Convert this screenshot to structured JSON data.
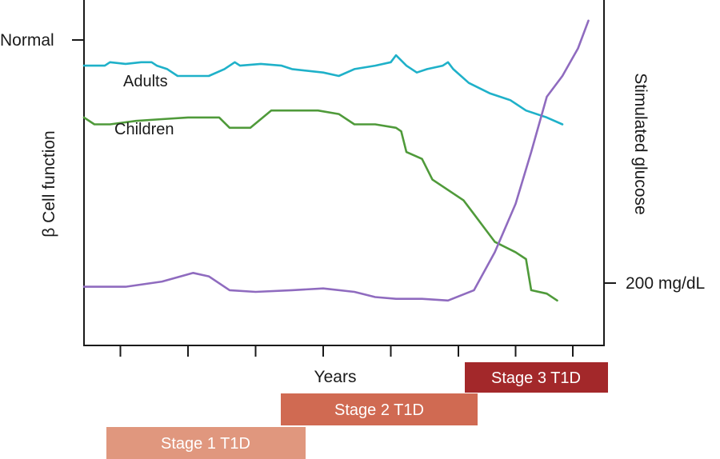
{
  "chart_data": {
    "type": "line",
    "title": "",
    "xlabel": "Years",
    "ylabel": "β Cell function",
    "y2label": "Stimulated glucose",
    "y_tick_label": "Normal",
    "y2_tick_label": "200 mg/dL",
    "xlim": [
      0,
      100
    ],
    "ylim": [
      0,
      100
    ],
    "x_ticks": [
      7,
      20,
      33,
      46,
      59,
      72,
      83,
      94
    ],
    "grid": false,
    "legend": "none",
    "series": [
      {
        "name": "Adults",
        "axis": "left",
        "color": "#1fb1c9",
        "points": [
          [
            0,
            81
          ],
          [
            4,
            81
          ],
          [
            5,
            82
          ],
          [
            8,
            81.5
          ],
          [
            11,
            82
          ],
          [
            13,
            82
          ],
          [
            14,
            81
          ],
          [
            16,
            80
          ],
          [
            18,
            78
          ],
          [
            21,
            78
          ],
          [
            24,
            78
          ],
          [
            27,
            80
          ],
          [
            29,
            82
          ],
          [
            30,
            81
          ],
          [
            34,
            81.5
          ],
          [
            38,
            81
          ],
          [
            40,
            80
          ],
          [
            46,
            79
          ],
          [
            49,
            78
          ],
          [
            52,
            80
          ],
          [
            56,
            81
          ],
          [
            59,
            82
          ],
          [
            60,
            84
          ],
          [
            62,
            81
          ],
          [
            64,
            79
          ],
          [
            66,
            80
          ],
          [
            69,
            81
          ],
          [
            70,
            82
          ],
          [
            71,
            80
          ],
          [
            74,
            76
          ],
          [
            78,
            73
          ],
          [
            82,
            71
          ],
          [
            85,
            68
          ],
          [
            89,
            66
          ],
          [
            92,
            64
          ]
        ]
      },
      {
        "name": "Children",
        "axis": "left",
        "color": "#4f9a3a",
        "points": [
          [
            0,
            66
          ],
          [
            2,
            64
          ],
          [
            5,
            64
          ],
          [
            10,
            65
          ],
          [
            15,
            65.5
          ],
          [
            20,
            66
          ],
          [
            24,
            66
          ],
          [
            26,
            66
          ],
          [
            28,
            63
          ],
          [
            32,
            63
          ],
          [
            36,
            68
          ],
          [
            40,
            68
          ],
          [
            45,
            68
          ],
          [
            49,
            67
          ],
          [
            52,
            64
          ],
          [
            56,
            64
          ],
          [
            60,
            63
          ],
          [
            61,
            62
          ],
          [
            62,
            56
          ],
          [
            65,
            54
          ],
          [
            67,
            48
          ],
          [
            70,
            45
          ],
          [
            73,
            42
          ],
          [
            75,
            38
          ],
          [
            77,
            34
          ],
          [
            79,
            30
          ],
          [
            83,
            27
          ],
          [
            85,
            25
          ],
          [
            86,
            16
          ],
          [
            89,
            15
          ],
          [
            91,
            13
          ]
        ]
      },
      {
        "name": "",
        "axis": "right",
        "color": "#8f6bbf",
        "points": [
          [
            0,
            17
          ],
          [
            8,
            17
          ],
          [
            15,
            18.5
          ],
          [
            21,
            21
          ],
          [
            24,
            20
          ],
          [
            28,
            16
          ],
          [
            33,
            15.5
          ],
          [
            40,
            16
          ],
          [
            46,
            16.5
          ],
          [
            52,
            15.5
          ],
          [
            56,
            14
          ],
          [
            60,
            13.5
          ],
          [
            65,
            13.5
          ],
          [
            70,
            13
          ],
          [
            75,
            16
          ],
          [
            79,
            27
          ],
          [
            83,
            41
          ],
          [
            86,
            56
          ],
          [
            89,
            72
          ],
          [
            92,
            78
          ],
          [
            95,
            86
          ],
          [
            97,
            94
          ]
        ]
      }
    ],
    "series_labels": [
      "Adults",
      "Children"
    ],
    "stages": [
      {
        "label": "Stage 1 T1D",
        "color": "#e0977e"
      },
      {
        "label": "Stage 2 T1D",
        "color": "#d06a52"
      },
      {
        "label": "Stage 3 T1D",
        "color": "#a3282a"
      }
    ]
  }
}
